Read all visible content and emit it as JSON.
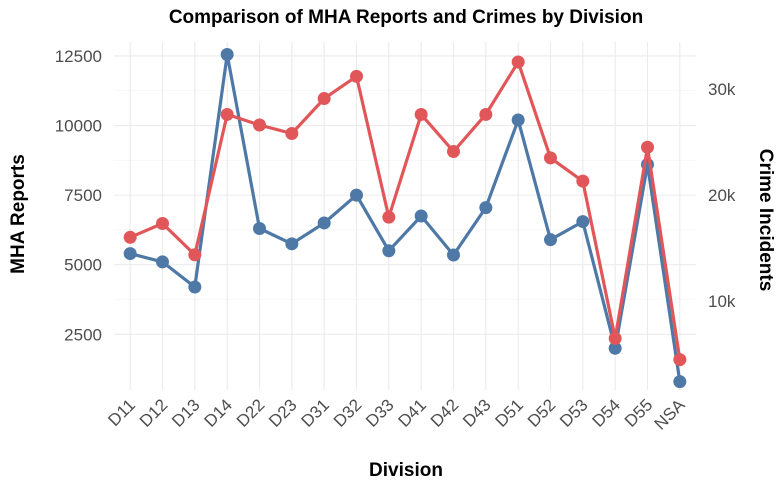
{
  "chart_data": {
    "type": "line",
    "title": "Comparison of MHA Reports and Crimes by Division",
    "xlabel": "Division",
    "ylabel": "MHA Reports",
    "y2label": "Crime Incidents",
    "categories": [
      "D11",
      "D12",
      "D13",
      "D14",
      "D22",
      "D23",
      "D31",
      "D32",
      "D33",
      "D41",
      "D42",
      "D43",
      "D51",
      "D52",
      "D53",
      "D54",
      "D55",
      "NSA"
    ],
    "ylim": [
      500,
      13000
    ],
    "y_ticks": [
      2500,
      5000,
      7500,
      10000,
      12500
    ],
    "y2lim": [
      1580,
      34440
    ],
    "y2_ticks": [
      10000,
      20000,
      30000
    ],
    "y2_tick_labels": [
      "10k",
      "20k",
      "30k"
    ],
    "grid": true,
    "series": [
      {
        "name": "MHA Reports",
        "axis": "left",
        "color": "#4e79a7",
        "values": [
          5400,
          5100,
          4200,
          12550,
          6300,
          5750,
          6500,
          7500,
          5500,
          6750,
          5350,
          7050,
          10200,
          5900,
          6550,
          2000,
          8600,
          800
        ]
      },
      {
        "name": "Crime Incidents",
        "axis": "right",
        "color": "#e15759",
        "values": [
          16000,
          17300,
          14350,
          27600,
          26600,
          25800,
          29100,
          31200,
          17900,
          27600,
          24100,
          27600,
          32550,
          23500,
          21300,
          6450,
          24500,
          4450
        ]
      }
    ]
  }
}
